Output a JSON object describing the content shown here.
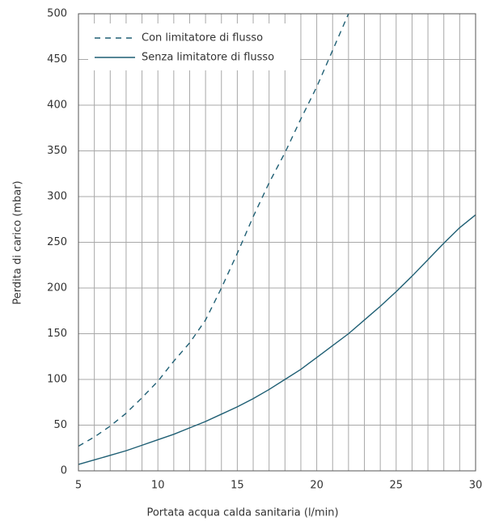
{
  "chart_data": {
    "type": "line",
    "x_label": "Portata acqua calda sanitaria (l/min)",
    "y_label": "Perdita di carico (mbar)",
    "xlim": [
      5,
      30
    ],
    "xticks": [
      5,
      10,
      15,
      20,
      25,
      30
    ],
    "x_minor_ticks": [
      6,
      7,
      8,
      9,
      11,
      12,
      13,
      14,
      16,
      17,
      18,
      19,
      21,
      22,
      23,
      24,
      26,
      27,
      28,
      29
    ],
    "ylim": [
      0,
      500
    ],
    "yticks": [
      0,
      50,
      100,
      150,
      200,
      250,
      300,
      350,
      400,
      450,
      500
    ],
    "grid": true,
    "legend": "upper left",
    "series": [
      {
        "name": "Con limitatore di flusso",
        "color": "#1f5f74",
        "dash": true,
        "x": [
          5,
          6,
          7,
          8,
          9,
          10,
          11,
          12,
          13,
          14,
          15,
          16,
          17,
          18,
          19,
          20,
          21,
          22
        ],
        "values": [
          27,
          37,
          49,
          63,
          80,
          98,
          120,
          140,
          165,
          200,
          238,
          278,
          315,
          348,
          385,
          420,
          460,
          500
        ]
      },
      {
        "name": "Senza limitatore di flusso",
        "color": "#1f5f74",
        "dash": false,
        "x": [
          5,
          6,
          7,
          8,
          9,
          10,
          11,
          12,
          13,
          14,
          15,
          16,
          17,
          18,
          19,
          20,
          21,
          22,
          23,
          24,
          25,
          26,
          27,
          28,
          29,
          30
        ],
        "values": [
          7,
          12,
          17,
          22,
          28,
          34,
          40,
          47,
          54,
          62,
          70,
          79,
          89,
          100,
          111,
          124,
          137,
          150,
          165,
          180,
          196,
          213,
          231,
          249,
          266,
          280
        ]
      }
    ]
  }
}
